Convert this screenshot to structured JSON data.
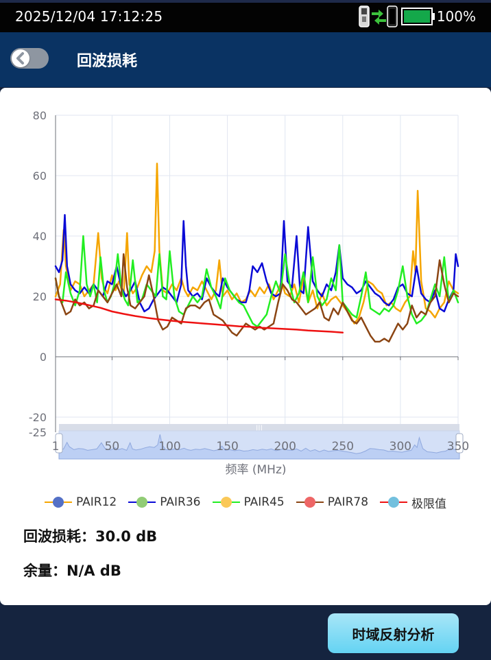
{
  "status_bar": {
    "datetime": "2025/12/04 17:12:25",
    "battery_percent": "100%",
    "battery_level": 1.0,
    "battery_color": "#14a84a",
    "icons": [
      "phone-link-icon",
      "transfer-arrows-icon",
      "phone-link-icon",
      "battery-icon"
    ]
  },
  "header": {
    "title": "回波损耗",
    "back_icon": "chevron-left-icon"
  },
  "chart_data": {
    "type": "line",
    "xlabel": "频率 (MHz)",
    "ylabel": "",
    "xlim": [
      1,
      350
    ],
    "ylim": [
      -25,
      80
    ],
    "x_ticks": [
      "1",
      "50",
      "100",
      "150",
      "200",
      "250",
      "300",
      "350"
    ],
    "y_ticks": [
      "80",
      "60",
      "40",
      "20",
      "0",
      "-20",
      "-25"
    ],
    "grid": true,
    "legend_position": "bottom",
    "series": [
      {
        "name": "PAIR12",
        "color": "#f5a500",
        "legend_dot_color": "#5470c6",
        "x": [
          1,
          5,
          8,
          10,
          14,
          18,
          22,
          26,
          30,
          34,
          38,
          41,
          43,
          46,
          50,
          53,
          56,
          60,
          63,
          65,
          68,
          72,
          76,
          80,
          84,
          87,
          89,
          91,
          94,
          98,
          102,
          106,
          110,
          113,
          116,
          120,
          124,
          128,
          132,
          136,
          140,
          143,
          146,
          150,
          154,
          158,
          162,
          166,
          170,
          174,
          178,
          182,
          186,
          190,
          194,
          197,
          200,
          204,
          208,
          212,
          216,
          220,
          224,
          228,
          232,
          236,
          240,
          244,
          248,
          252,
          256,
          260,
          264,
          268,
          272,
          276,
          280,
          284,
          288,
          292,
          296,
          300,
          304,
          308,
          311,
          313,
          315,
          318,
          322,
          326,
          330,
          334,
          338,
          342,
          346,
          350
        ],
        "y": [
          20,
          24,
          42,
          30,
          22,
          25,
          24,
          20,
          22,
          24,
          41,
          26,
          23,
          21,
          27,
          22,
          25,
          20,
          41,
          24,
          21,
          23,
          27,
          30,
          28,
          35,
          64,
          35,
          22,
          21,
          24,
          22,
          26,
          22,
          20,
          23,
          22,
          25,
          22,
          19,
          22,
          32,
          20,
          22,
          19,
          21,
          18,
          19,
          22,
          20,
          23,
          21,
          24,
          19,
          22,
          25,
          21,
          20,
          24,
          18,
          26,
          18,
          22,
          16,
          21,
          17,
          19,
          20,
          18,
          16,
          14,
          11,
          13,
          18,
          25,
          24,
          22,
          21,
          17,
          18,
          16,
          15,
          18,
          20,
          35,
          28,
          55,
          25,
          16,
          15,
          13,
          16,
          18,
          25,
          22,
          21
        ]
      },
      {
        "name": "PAIR36",
        "color": "#0a0ad6",
        "legend_dot_color": "#91cc75",
        "x": [
          1,
          4,
          7,
          9,
          11,
          14,
          18,
          22,
          26,
          30,
          34,
          38,
          42,
          46,
          50,
          54,
          58,
          62,
          66,
          70,
          74,
          78,
          82,
          86,
          90,
          94,
          98,
          102,
          106,
          110,
          112,
          114,
          116,
          120,
          124,
          128,
          132,
          136,
          140,
          143,
          146,
          150,
          154,
          158,
          162,
          166,
          169,
          172,
          176,
          180,
          184,
          188,
          192,
          196,
          199,
          202,
          206,
          210,
          213,
          216,
          220,
          224,
          228,
          232,
          236,
          240,
          244,
          247,
          250,
          254,
          258,
          262,
          266,
          270,
          274,
          278,
          282,
          286,
          290,
          294,
          298,
          302,
          306,
          310,
          314,
          318,
          322,
          326,
          330,
          334,
          338,
          342,
          346,
          348,
          350
        ],
        "y": [
          30,
          28,
          32,
          47,
          30,
          24,
          22,
          21,
          23,
          21,
          24,
          22,
          20,
          25,
          24,
          30,
          23,
          20,
          22,
          25,
          18,
          15,
          16,
          19,
          21,
          23,
          22,
          20,
          18,
          24,
          45,
          30,
          22,
          20,
          21,
          19,
          26,
          23,
          21,
          20,
          26,
          23,
          21,
          19,
          18,
          18,
          22,
          30,
          28,
          31,
          25,
          21,
          20,
          21,
          45,
          25,
          23,
          40,
          22,
          21,
          43,
          25,
          22,
          20,
          24,
          22,
          28,
          37,
          26,
          24,
          23,
          21,
          22,
          25,
          23,
          21,
          20,
          18,
          17,
          19,
          23,
          24,
          21,
          20,
          30,
          21,
          19,
          18,
          22,
          16,
          15,
          19,
          22,
          34,
          30
        ]
      },
      {
        "name": "PAIR45",
        "color": "#22ee22",
        "legend_dot_color": "#fac858",
        "x": [
          1,
          4,
          7,
          10,
          14,
          18,
          22,
          25,
          28,
          31,
          34,
          37,
          40,
          43,
          46,
          49,
          52,
          55,
          58,
          61,
          64,
          68,
          72,
          76,
          80,
          84,
          88,
          91,
          94,
          97,
          100,
          104,
          108,
          112,
          116,
          120,
          124,
          128,
          132,
          136,
          140,
          144,
          148,
          152,
          156,
          160,
          164,
          168,
          172,
          176,
          180,
          184,
          188,
          192,
          196,
          200,
          204,
          208,
          212,
          216,
          220,
          224,
          228,
          232,
          236,
          240,
          244,
          247,
          250,
          254,
          258,
          262,
          266,
          270,
          274,
          278,
          282,
          286,
          290,
          294,
          298,
          302,
          306,
          310,
          314,
          318,
          322,
          326,
          330,
          334,
          338,
          342,
          346,
          350
        ],
        "y": [
          26,
          20,
          18,
          28,
          21,
          17,
          22,
          40,
          24,
          20,
          24,
          18,
          33,
          22,
          18,
          20,
          24,
          34,
          23,
          19,
          17,
          32,
          18,
          19,
          24,
          22,
          20,
          34,
          20,
          19,
          35,
          20,
          15,
          14,
          17,
          20,
          18,
          20,
          29,
          23,
          20,
          16,
          26,
          22,
          20,
          18,
          17,
          14,
          11,
          10,
          12,
          14,
          20,
          25,
          21,
          34,
          24,
          18,
          21,
          28,
          18,
          33,
          20,
          17,
          19,
          26,
          22,
          37,
          18,
          16,
          14,
          13,
          20,
          28,
          16,
          15,
          14,
          16,
          15,
          17,
          22,
          30,
          20,
          14,
          11,
          12,
          14,
          19,
          24,
          20,
          33,
          18,
          22,
          18
        ]
      },
      {
        "name": "PAIR78",
        "color": "#8b4513",
        "legend_dot_color": "#ee6666",
        "x": [
          1,
          4,
          7,
          10,
          14,
          18,
          22,
          26,
          30,
          34,
          38,
          42,
          46,
          50,
          54,
          58,
          60,
          63,
          66,
          70,
          74,
          78,
          82,
          86,
          90,
          94,
          98,
          102,
          106,
          110,
          114,
          118,
          122,
          126,
          130,
          134,
          138,
          142,
          146,
          150,
          154,
          158,
          162,
          166,
          170,
          174,
          178,
          182,
          186,
          190,
          194,
          198,
          202,
          206,
          210,
          214,
          218,
          222,
          226,
          230,
          234,
          238,
          242,
          246,
          250,
          254,
          258,
          262,
          266,
          270,
          274,
          278,
          282,
          286,
          290,
          294,
          298,
          302,
          306,
          310,
          314,
          318,
          322,
          326,
          330,
          334,
          338,
          342,
          346,
          350
        ],
        "y": [
          26,
          20,
          17,
          14,
          15,
          19,
          17,
          18,
          16,
          17,
          22,
          20,
          18,
          21,
          24,
          20,
          34,
          23,
          17,
          16,
          18,
          20,
          27,
          20,
          12,
          9,
          10,
          13,
          12,
          11,
          16,
          17,
          17,
          16,
          18,
          19,
          14,
          13,
          12,
          10,
          8,
          7,
          9,
          11,
          10,
          9,
          10,
          9,
          10,
          11,
          18,
          24,
          22,
          19,
          18,
          16,
          14,
          15,
          16,
          18,
          13,
          12,
          16,
          14,
          18,
          15,
          12,
          11,
          13,
          10,
          7,
          5,
          5,
          6,
          5,
          8,
          11,
          9,
          11,
          17,
          13,
          15,
          14,
          18,
          20,
          32,
          24,
          18,
          21,
          20
        ]
      },
      {
        "name": "极限值",
        "color": "#ee1111",
        "legend_dot_color": "#73c0de",
        "x": [
          1,
          10,
          20,
          30,
          40,
          50,
          60,
          70,
          80,
          90,
          100,
          110,
          120,
          130,
          140,
          150,
          160,
          170,
          180,
          190,
          200,
          210,
          220,
          230,
          240,
          250
        ],
        "y": [
          19,
          18.6,
          17.9,
          17.1,
          16.2,
          15.0,
          14.2,
          13.5,
          12.9,
          12.4,
          12.0,
          11.6,
          11.3,
          11.0,
          10.7,
          10.4,
          10.1,
          9.9,
          9.6,
          9.4,
          9.2,
          9.0,
          8.7,
          8.5,
          8.3,
          8.0
        ]
      }
    ],
    "zoom_slider": {
      "range_start": 1,
      "range_end": 350
    }
  },
  "info": {
    "return_loss_label": "回波损耗：",
    "return_loss_value": "30.0 dB",
    "margin_label": "余量：",
    "margin_value": "N/A dB"
  },
  "buttons": {
    "tdr_label": "时域反射分析"
  }
}
